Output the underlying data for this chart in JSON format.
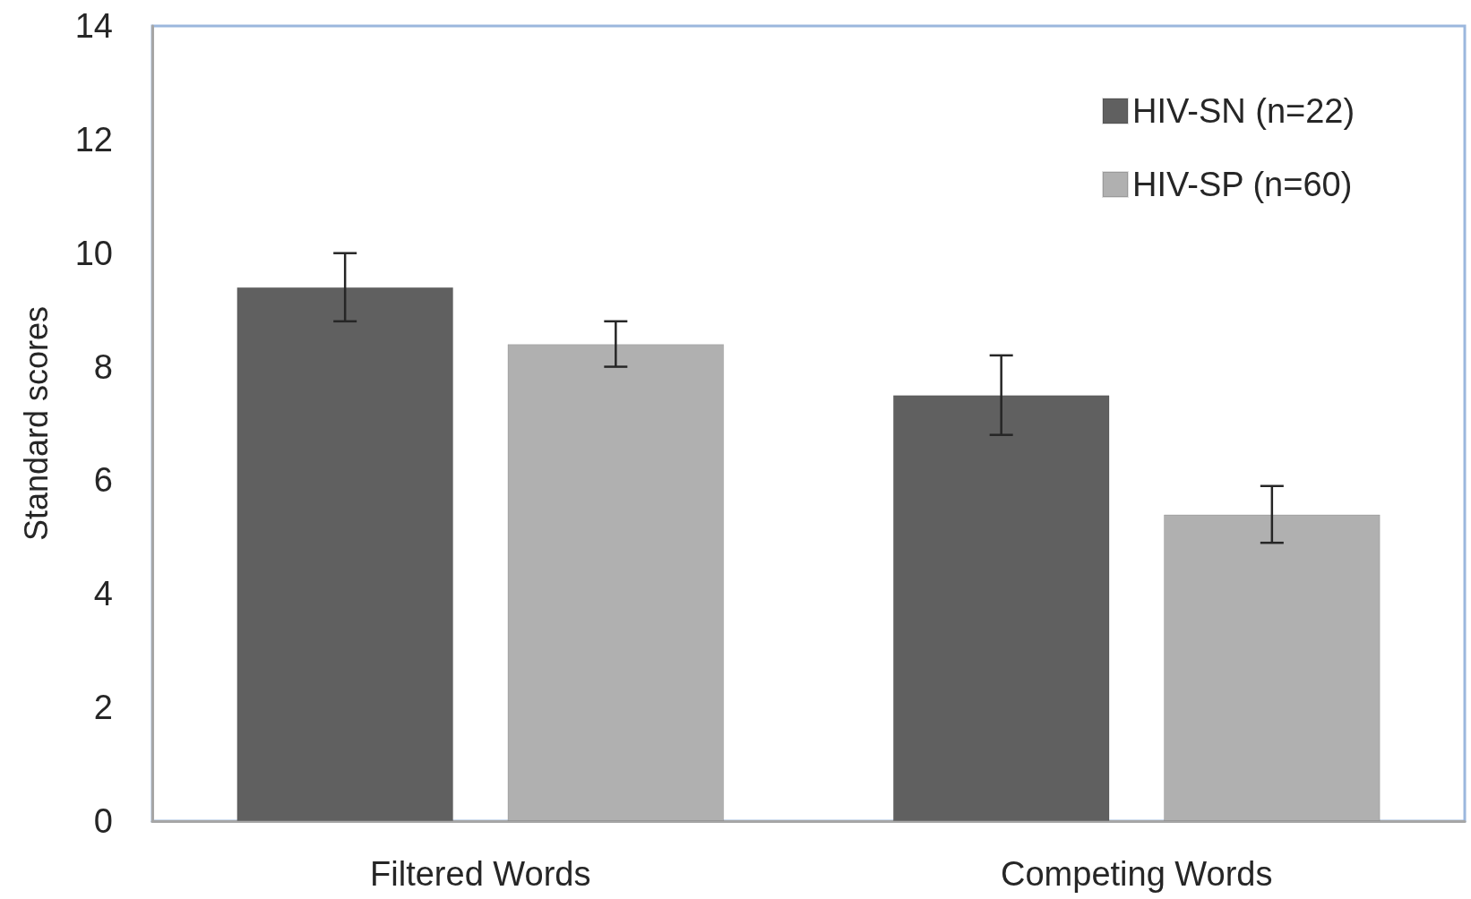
{
  "chart_data": {
    "type": "bar",
    "ylabel": "Standard scores",
    "categories": [
      "Filtered Words",
      "Competing Words"
    ],
    "series": [
      {
        "name": "HIV-SN (n=22)",
        "color": "#606060",
        "values": [
          9.4,
          7.5
        ],
        "errors": [
          0.6,
          0.7
        ]
      },
      {
        "name": "HIV-SP (n=60)",
        "color": "#b0b0b0",
        "values": [
          8.4,
          5.4
        ],
        "errors": [
          0.4,
          0.5
        ]
      }
    ],
    "ylim": [
      0,
      14
    ],
    "yticks": [
      0,
      2,
      4,
      6,
      8,
      10,
      12,
      14
    ],
    "grid": false,
    "legend": "top right"
  }
}
